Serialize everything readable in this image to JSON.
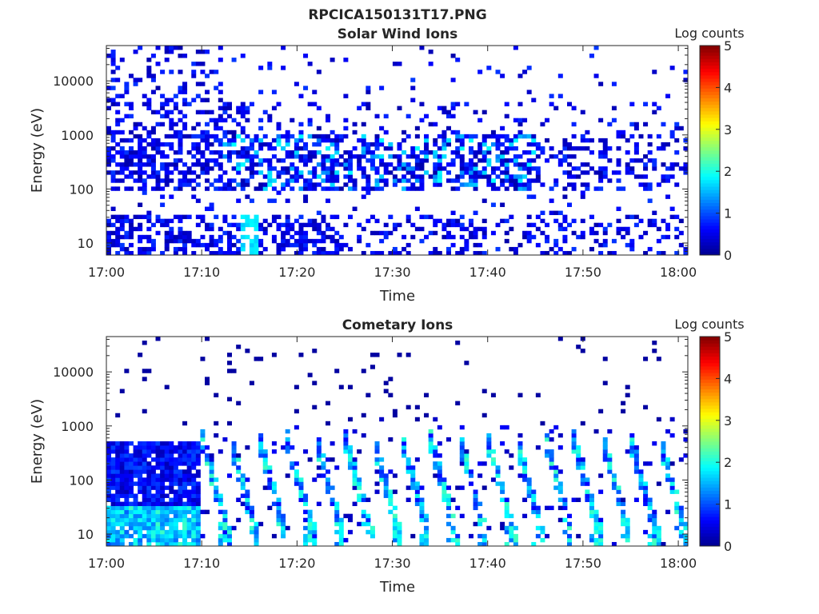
{
  "figure": {
    "title": "RPCICA150131T17.PNG",
    "colormap": [
      "#00008f",
      "#0000ff",
      "#0080ff",
      "#00ffff",
      "#80ff80",
      "#ffff00",
      "#ff8000",
      "#ff0000",
      "#800000"
    ]
  },
  "chart_data": [
    {
      "type": "heatmap",
      "title": "Solar Wind Ions",
      "xlabel": "Time",
      "ylabel": "Energy (eV)",
      "y_scale": "log",
      "ylim": [
        6,
        45000
      ],
      "x_ticks": [
        "17:00",
        "17:10",
        "17:20",
        "17:30",
        "17:40",
        "17:50",
        "18:00"
      ],
      "y_ticks": [
        "10",
        "100",
        "1000",
        "10000"
      ],
      "y_tick_values": [
        10,
        100,
        1000,
        10000
      ],
      "colorbar": {
        "label": "Log counts",
        "min": 0,
        "max": 5,
        "ticks": [
          "0",
          "1",
          "2",
          "3",
          "4",
          "5"
        ]
      },
      "time_range": [
        "17:00",
        "18:01"
      ],
      "pattern": "mostly 0-1 log counts across 6 eV to 40 keV; brightest (~1.5-2) near 150-800 eV at 17:13-17:40; band of 0.3-1 below 30 eV before 17:25",
      "peaks": [
        {
          "time": "17:15",
          "energy_eV": 20,
          "log_counts": 2.0
        },
        {
          "time": "17:11",
          "energy_eV": 150,
          "log_counts": 1.6
        },
        {
          "time": "17:26",
          "energy_eV": 600,
          "log_counts": 1.8
        },
        {
          "time": "17:40",
          "energy_eV": 150,
          "log_counts": 1.9
        }
      ]
    },
    {
      "type": "heatmap",
      "title": "Cometary Ions",
      "xlabel": "Time",
      "ylabel": "Energy (eV)",
      "y_scale": "log",
      "ylim": [
        6,
        45000
      ],
      "x_ticks": [
        "17:00",
        "17:10",
        "17:20",
        "17:30",
        "17:40",
        "17:50",
        "18:00"
      ],
      "y_ticks": [
        "10",
        "100",
        "1000",
        "10000"
      ],
      "y_tick_values": [
        10,
        100,
        1000,
        10000
      ],
      "colorbar": {
        "label": "Log counts",
        "min": 0,
        "max": 5,
        "ticks": [
          "0",
          "1",
          "2",
          "3",
          "4",
          "5"
        ]
      },
      "time_range": [
        "17:00",
        "18:01"
      ],
      "pattern": "dense 0.5-2 log counts below 600 eV before 17:10; after 17:10 periodic dispersing stripes every ~3 min from ~600 eV down to ~10 eV, peaking ~2-2.8",
      "peaks": [
        {
          "time": "17:15",
          "energy_eV": 12,
          "log_counts": 2.8
        },
        {
          "time": "17:21",
          "energy_eV": 12,
          "log_counts": 2.5
        },
        {
          "time": "17:40",
          "energy_eV": 150,
          "log_counts": 2.3
        },
        {
          "time": "17:47",
          "energy_eV": 100,
          "log_counts": 2.2
        }
      ]
    }
  ]
}
